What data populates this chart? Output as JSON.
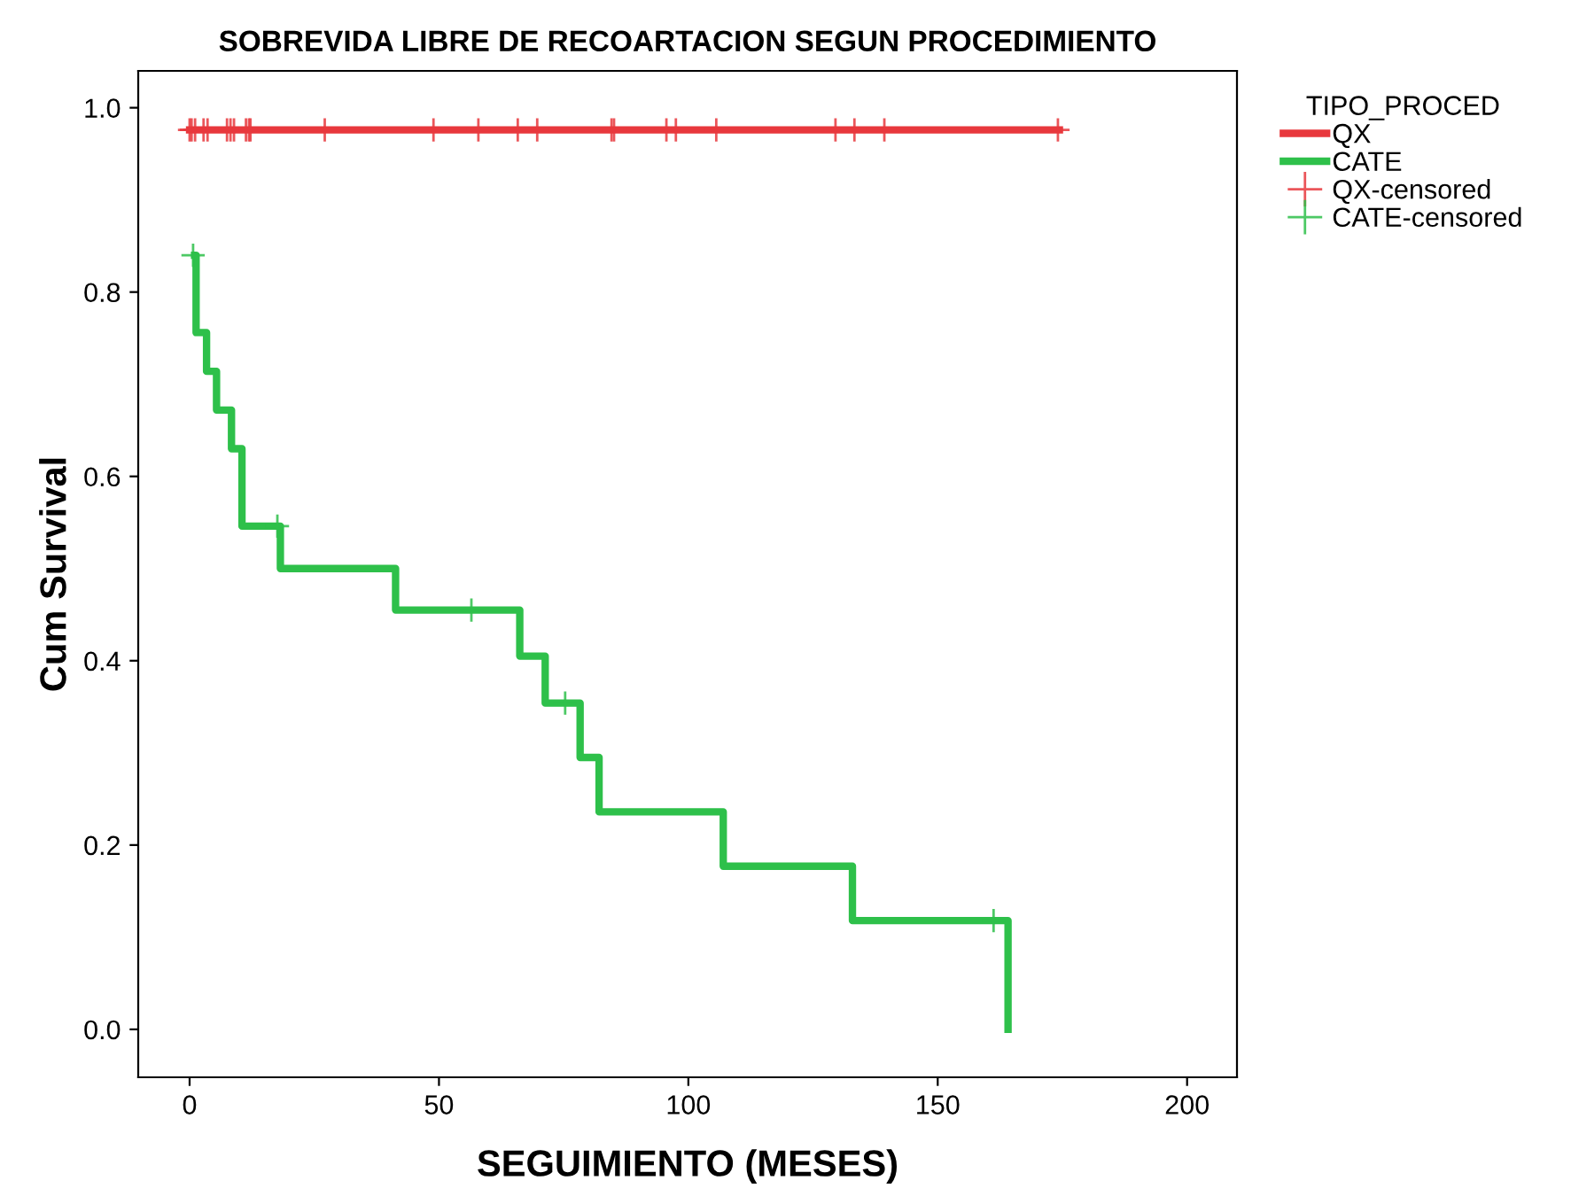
{
  "chart_data": {
    "type": "step",
    "title": "SOBREVIDA LIBRE DE RECOARTACION SEGUN PROCEDIMIENTO",
    "xlabel": "SEGUIMIENTO (MESES)",
    "ylabel": "Cum Survival",
    "legend_title": "TIPO_PROCED",
    "series": [
      {
        "name": "QX",
        "color": "#e8383d",
        "x": [
          0,
          174.4
        ],
        "values": [
          0.976,
          0.976
        ]
      },
      {
        "name": "CATE",
        "color": "#2ec04a",
        "x": [
          1,
          1.3,
          3.4,
          5.4,
          8.4,
          10.5,
          18.2,
          41.3,
          66.2,
          71.3,
          78.3,
          82.1,
          107.0,
          132.9,
          164.1
        ],
        "values": [
          0.84,
          0.756,
          0.714,
          0.672,
          0.63,
          0.546,
          0.5,
          0.455,
          0.405,
          0.354,
          0.295,
          0.236,
          0.177,
          0.118,
          0
        ]
      },
      {
        "name": "QX-censored",
        "type": "scatter",
        "marker": "cross",
        "color": "#e8383d",
        "x": [
          0,
          0.4,
          1.1,
          2.8,
          3.6,
          7.5,
          8.2,
          8.9,
          11.3,
          11.9,
          12.2,
          27.1,
          48.9,
          57.9,
          65.8,
          69.7,
          84.6,
          85.1,
          95.6,
          97.5,
          105.6,
          129.5,
          133.3,
          139.3,
          174.1
        ],
        "values": [
          0.976,
          0.976,
          0.976,
          0.976,
          0.976,
          0.976,
          0.976,
          0.976,
          0.976,
          0.976,
          0.976,
          0.976,
          0.976,
          0.976,
          0.976,
          0.976,
          0.976,
          0.976,
          0.976,
          0.976,
          0.976,
          0.976,
          0.976,
          0.976,
          0.976
        ]
      },
      {
        "name": "CATE-censored",
        "type": "scatter",
        "marker": "cross",
        "color": "#2ec04a",
        "x": [
          0.7,
          17.6,
          56.5,
          75.3,
          161.2
        ],
        "values": [
          0.84,
          0.546,
          0.455,
          0.354,
          0.118
        ]
      }
    ],
    "xlim": [
      -10.3,
      210
    ],
    "xticks": [
      0,
      50,
      100,
      150,
      200
    ],
    "ylim": [
      -0.052,
      1.04
    ],
    "yticks": [
      {
        "value": 0,
        "label": "0.0"
      },
      {
        "value": 0.2,
        "label": "0.2"
      },
      {
        "value": 0.4,
        "label": "0.4"
      },
      {
        "value": 0.6,
        "label": "0.6"
      },
      {
        "value": 0.8,
        "label": "0.8"
      },
      {
        "value": 1.0,
        "label": "1.0"
      }
    ],
    "grid": false,
    "legend": "right"
  }
}
